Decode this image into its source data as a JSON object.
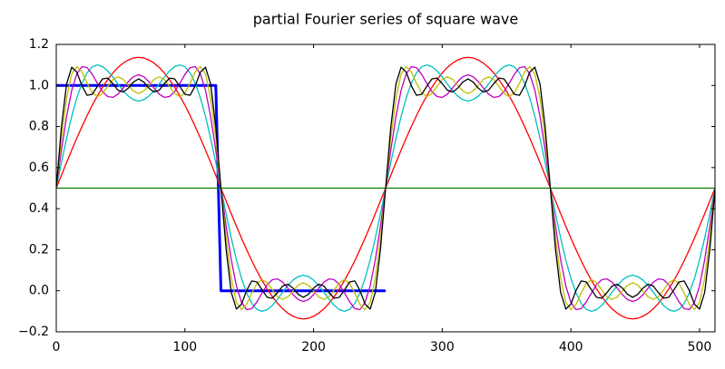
{
  "chart_data": {
    "type": "line",
    "title": "partial Fourier series of square wave",
    "xlim": [
      0,
      512
    ],
    "ylim": [
      -0.2,
      1.2
    ],
    "xticks": [
      0,
      100,
      200,
      300,
      400,
      500
    ],
    "yticks": [
      {
        "value": -0.2,
        "label": "−0.2"
      },
      {
        "value": 0,
        "label": "0.0"
      },
      {
        "value": 0.2,
        "label": "0.2"
      },
      {
        "value": 0.4,
        "label": "0.4"
      },
      {
        "value": 0.6,
        "label": "0.6"
      },
      {
        "value": 0.8,
        "label": "0.8"
      },
      {
        "value": 1,
        "label": "1.0"
      },
      {
        "value": 1.2,
        "label": "1.2"
      }
    ],
    "grid": false,
    "x": [
      0,
      4,
      8,
      12,
      16,
      20,
      24,
      28,
      32,
      36,
      40,
      44,
      48,
      52,
      56,
      60,
      64,
      68,
      72,
      76,
      80,
      84,
      88,
      92,
      96,
      100,
      104,
      108,
      112,
      116,
      120,
      124,
      128,
      132,
      136,
      140,
      144,
      148,
      152,
      156,
      160,
      164,
      168,
      172,
      176,
      180,
      184,
      188,
      192,
      196,
      200,
      204,
      208,
      212,
      216,
      220,
      224,
      228,
      232,
      236,
      240,
      244,
      248,
      252,
      256,
      260,
      264,
      268,
      272,
      276,
      280,
      284,
      288,
      292,
      296,
      300,
      304,
      308,
      312,
      316,
      320,
      324,
      328,
      332,
      336,
      340,
      344,
      348,
      352,
      356,
      360,
      364,
      368,
      372,
      376,
      380,
      384,
      388,
      392,
      396,
      400,
      404,
      408,
      412,
      416,
      420,
      424,
      428,
      432,
      436,
      440,
      444,
      448,
      452,
      456,
      460,
      464,
      468,
      472,
      476,
      480,
      484,
      488,
      492,
      496,
      500,
      504,
      508,
      512
    ],
    "series": [
      {
        "color": "#0000ff",
        "linewidth": 3,
        "values": [
          1,
          1,
          1,
          1,
          1,
          1,
          1,
          1,
          1,
          1,
          1,
          1,
          1,
          1,
          1,
          1,
          1,
          1,
          1,
          1,
          1,
          1,
          1,
          1,
          1,
          1,
          1,
          1,
          1,
          1,
          1,
          1,
          0,
          0,
          0,
          0,
          0,
          0,
          0,
          0,
          0,
          0,
          0,
          0,
          0,
          0,
          0,
          0,
          0,
          0,
          0,
          0,
          0,
          0,
          0,
          0,
          0,
          0,
          0,
          0,
          0,
          0,
          0,
          0,
          0,
          null,
          null,
          null,
          null,
          null,
          null,
          null,
          null,
          null,
          null,
          null,
          null,
          null,
          null,
          null,
          null,
          null,
          null,
          null,
          null,
          null,
          null,
          null,
          null,
          null,
          null,
          null,
          null,
          null,
          null,
          null,
          null,
          null,
          null,
          null,
          null,
          null,
          null,
          null,
          null,
          null,
          null,
          null,
          null,
          null,
          null,
          null,
          null,
          null,
          null,
          null,
          null,
          null,
          null,
          null,
          null,
          null,
          null,
          null,
          null,
          null,
          null,
          null,
          null
        ]
      },
      {
        "color": "#008000",
        "linewidth": 1.3,
        "values": [
          0.5,
          0.5,
          0.5,
          0.5,
          0.5,
          0.5,
          0.5,
          0.5,
          0.5,
          0.5,
          0.5,
          0.5,
          0.5,
          0.5,
          0.5,
          0.5,
          0.5,
          0.5,
          0.5,
          0.5,
          0.5,
          0.5,
          0.5,
          0.5,
          0.5,
          0.5,
          0.5,
          0.5,
          0.5,
          0.5,
          0.5,
          0.5,
          0.5,
          0.5,
          0.5,
          0.5,
          0.5,
          0.5,
          0.5,
          0.5,
          0.5,
          0.5,
          0.5,
          0.5,
          0.5,
          0.5,
          0.5,
          0.5,
          0.5,
          0.5,
          0.5,
          0.5,
          0.5,
          0.5,
          0.5,
          0.5,
          0.5,
          0.5,
          0.5,
          0.5,
          0.5,
          0.5,
          0.5,
          0.5,
          0.5,
          0.5,
          0.5,
          0.5,
          0.5,
          0.5,
          0.5,
          0.5,
          0.5,
          0.5,
          0.5,
          0.5,
          0.5,
          0.5,
          0.5,
          0.5,
          0.5,
          0.5,
          0.5,
          0.5,
          0.5,
          0.5,
          0.5,
          0.5,
          0.5,
          0.5,
          0.5,
          0.5,
          0.5,
          0.5,
          0.5,
          0.5,
          0.5,
          0.5,
          0.5,
          0.5,
          0.5,
          0.5,
          0.5,
          0.5,
          0.5,
          0.5,
          0.5,
          0.5,
          0.5,
          0.5,
          0.5,
          0.5,
          0.5,
          0.5,
          0.5,
          0.5,
          0.5,
          0.5,
          0.5,
          0.5,
          0.5,
          0.5,
          0.5,
          0.5,
          0.5,
          0.5,
          0.5,
          0.5,
          0.5
        ]
      },
      {
        "color": "#ff0000",
        "linewidth": 1.3,
        "values": [
          0.5,
          0.562,
          0.624,
          0.685,
          0.744,
          0.8,
          0.854,
          0.904,
          0.95,
          0.992,
          1.029,
          1.061,
          1.088,
          1.109,
          1.124,
          1.134,
          1.137,
          1.134,
          1.124,
          1.109,
          1.088,
          1.061,
          1.029,
          0.992,
          0.95,
          0.904,
          0.854,
          0.8,
          0.744,
          0.685,
          0.624,
          0.562,
          0.5,
          0.438,
          0.376,
          0.315,
          0.256,
          0.2,
          0.146,
          0.096,
          0.05,
          0.008,
          -0.029,
          -0.061,
          -0.088,
          -0.109,
          -0.124,
          -0.134,
          -0.137,
          -0.134,
          -0.124,
          -0.109,
          -0.088,
          -0.061,
          -0.029,
          0.008,
          0.05,
          0.096,
          0.146,
          0.2,
          0.256,
          0.315,
          0.376,
          0.438,
          0.5,
          0.562,
          0.624,
          0.685,
          0.744,
          0.8,
          0.854,
          0.904,
          0.95,
          0.992,
          1.029,
          1.061,
          1.088,
          1.109,
          1.124,
          1.134,
          1.137,
          1.134,
          1.124,
          1.109,
          1.088,
          1.061,
          1.029,
          0.992,
          0.95,
          0.904,
          0.854,
          0.8,
          0.744,
          0.685,
          0.624,
          0.562,
          0.5,
          0.438,
          0.376,
          0.315,
          0.256,
          0.2,
          0.146,
          0.096,
          0.05,
          0.008,
          -0.029,
          -0.061,
          -0.088,
          -0.109,
          -0.124,
          -0.134,
          -0.137,
          -0.134,
          -0.124,
          -0.109,
          -0.088,
          -0.061,
          -0.029,
          0.008,
          0.05,
          0.096,
          0.146,
          0.2,
          0.256,
          0.315,
          0.376,
          0.438,
          0.5
        ]
      },
      {
        "color": "#00bfbf",
        "linewidth": 1.3,
        "values": [
          0.5,
          0.624,
          0.742,
          0.849,
          0.94,
          1.011,
          1.062,
          1.091,
          1.1,
          1.092,
          1.071,
          1.041,
          1.007,
          0.975,
          0.948,
          0.931,
          0.924,
          0.931,
          0.948,
          0.975,
          1.007,
          1.041,
          1.071,
          1.092,
          1.1,
          1.091,
          1.062,
          1.011,
          0.94,
          0.849,
          0.742,
          0.624,
          0.5,
          0.376,
          0.258,
          0.151,
          0.06,
          -0.011,
          -0.062,
          -0.091,
          -0.1,
          -0.092,
          -0.071,
          -0.041,
          -0.007,
          0.025,
          0.052,
          0.069,
          0.076,
          0.069,
          0.052,
          0.025,
          -0.007,
          -0.041,
          -0.071,
          -0.092,
          -0.1,
          -0.091,
          -0.062,
          -0.011,
          0.06,
          0.151,
          0.258,
          0.376,
          0.5,
          0.624,
          0.742,
          0.849,
          0.94,
          1.011,
          1.062,
          1.091,
          1.1,
          1.092,
          1.071,
          1.041,
          1.007,
          0.975,
          0.948,
          0.931,
          0.924,
          0.931,
          0.948,
          0.975,
          1.007,
          1.041,
          1.071,
          1.092,
          1.1,
          1.091,
          1.062,
          1.011,
          0.94,
          0.849,
          0.742,
          0.624,
          0.5,
          0.376,
          0.258,
          0.151,
          0.06,
          -0.011,
          -0.062,
          -0.091,
          -0.1,
          -0.092,
          -0.071,
          -0.041,
          -0.007,
          0.025,
          0.052,
          0.069,
          0.076,
          0.069,
          0.052,
          0.025,
          -0.007,
          -0.041,
          -0.071,
          -0.092,
          -0.1,
          -0.091,
          -0.062,
          -0.011,
          0.06,
          0.151,
          0.258,
          0.376,
          0.5
        ]
      },
      {
        "color": "#bf00bf",
        "linewidth": 1.3,
        "values": [
          0.5,
          0.684,
          0.848,
          0.976,
          1.057,
          1.092,
          1.087,
          1.054,
          1.01,
          0.97,
          0.946,
          0.942,
          0.958,
          0.987,
          1.019,
          1.043,
          1.052,
          1.043,
          1.019,
          0.987,
          0.958,
          0.942,
          0.946,
          0.97,
          1.01,
          1.054,
          1.087,
          1.092,
          1.057,
          0.976,
          0.848,
          0.684,
          0.5,
          0.316,
          0.152,
          0.024,
          -0.057,
          -0.092,
          -0.087,
          -0.054,
          -0.01,
          0.03,
          0.054,
          0.058,
          0.042,
          0.013,
          -0.019,
          -0.043,
          -0.052,
          -0.043,
          -0.019,
          0.013,
          0.042,
          0.058,
          0.054,
          0.03,
          -0.01,
          -0.054,
          -0.087,
          -0.092,
          -0.057,
          0.024,
          0.152,
          0.316,
          0.5,
          0.684,
          0.848,
          0.976,
          1.057,
          1.092,
          1.087,
          1.054,
          1.01,
          0.97,
          0.946,
          0.942,
          0.958,
          0.987,
          1.019,
          1.043,
          1.052,
          1.043,
          1.019,
          0.987,
          0.958,
          0.942,
          0.946,
          0.97,
          1.01,
          1.054,
          1.087,
          1.092,
          1.057,
          0.976,
          0.848,
          0.684,
          0.5,
          0.316,
          0.152,
          0.024,
          -0.057,
          -0.092,
          -0.087,
          -0.054,
          -0.01,
          0.03,
          0.054,
          0.058,
          0.042,
          0.013,
          -0.019,
          -0.043,
          -0.052,
          -0.043,
          -0.019,
          0.013,
          0.042,
          0.058,
          0.054,
          0.03,
          -0.01,
          -0.054,
          -0.087,
          -0.092,
          -0.057,
          0.024,
          0.152,
          0.316,
          0.5
        ]
      },
      {
        "color": "#bfbf00",
        "linewidth": 1.3,
        "values": [
          0.5,
          0.742,
          0.937,
          1.056,
          1.092,
          1.066,
          1.011,
          0.964,
          0.946,
          0.961,
          0.996,
          1.029,
          1.042,
          1.03,
          1.001,
          0.973,
          0.961,
          0.973,
          1.001,
          1.03,
          1.042,
          1.029,
          0.996,
          0.961,
          0.946,
          0.964,
          1.011,
          1.066,
          1.092,
          1.056,
          0.937,
          0.742,
          0.5,
          0.258,
          0.063,
          -0.056,
          -0.092,
          -0.066,
          -0.011,
          0.036,
          0.054,
          0.039,
          0.004,
          -0.029,
          -0.042,
          -0.03,
          -0.001,
          0.027,
          0.039,
          0.027,
          -0.001,
          -0.03,
          -0.042,
          -0.029,
          0.004,
          0.039,
          0.054,
          0.036,
          -0.011,
          -0.066,
          -0.092,
          -0.056,
          0.063,
          0.258,
          0.5,
          0.742,
          0.937,
          1.056,
          1.092,
          1.066,
          1.011,
          0.964,
          0.946,
          0.961,
          0.996,
          1.029,
          1.042,
          1.03,
          1.001,
          0.973,
          0.961,
          0.973,
          1.001,
          1.03,
          1.042,
          1.029,
          0.996,
          0.961,
          0.946,
          0.964,
          1.011,
          1.066,
          1.092,
          1.056,
          0.937,
          0.742,
          0.5,
          0.258,
          0.063,
          -0.056,
          -0.092,
          -0.066,
          -0.011,
          0.036,
          0.054,
          0.039,
          0.004,
          -0.029,
          -0.042,
          -0.03,
          -0.001,
          0.027,
          0.039,
          0.027,
          -0.001,
          -0.03,
          -0.042,
          -0.029,
          0.004,
          0.039,
          0.054,
          0.036,
          -0.011,
          -0.066,
          -0.092,
          -0.056,
          0.063,
          0.258,
          0.5
        ]
      },
      {
        "color": "#000000",
        "linewidth": 1.3,
        "values": [
          0.5,
          0.796,
          1.007,
          1.089,
          1.065,
          0.998,
          0.952,
          0.957,
          0.996,
          1.032,
          1.036,
          1.009,
          0.977,
          0.968,
          0.987,
          1.017,
          1.032,
          1.017,
          0.987,
          0.968,
          0.977,
          1.009,
          1.036,
          1.032,
          0.996,
          0.957,
          0.952,
          0.998,
          1.065,
          1.089,
          1.007,
          0.796,
          0.5,
          0.204,
          -0.007,
          -0.089,
          -0.065,
          0.002,
          0.048,
          0.043,
          0.004,
          -0.032,
          -0.036,
          -0.009,
          0.023,
          0.032,
          0.013,
          -0.017,
          -0.032,
          -0.017,
          0.013,
          0.032,
          0.023,
          -0.009,
          -0.036,
          -0.032,
          0.004,
          0.043,
          0.048,
          0.002,
          -0.065,
          -0.089,
          -0.007,
          0.204,
          0.5,
          0.796,
          1.007,
          1.089,
          1.065,
          0.998,
          0.952,
          0.957,
          0.996,
          1.032,
          1.036,
          1.009,
          0.977,
          0.968,
          0.987,
          1.017,
          1.032,
          1.017,
          0.987,
          0.968,
          0.977,
          1.009,
          1.036,
          1.032,
          0.996,
          0.957,
          0.952,
          0.998,
          1.065,
          1.089,
          1.007,
          0.796,
          0.5,
          0.204,
          -0.007,
          -0.089,
          -0.065,
          0.002,
          0.048,
          0.043,
          0.004,
          -0.032,
          -0.036,
          -0.009,
          0.023,
          0.032,
          0.013,
          -0.017,
          -0.032,
          -0.017,
          0.013,
          0.032,
          0.023,
          -0.009,
          -0.036,
          -0.032,
          0.004,
          0.043,
          0.048,
          0.002,
          -0.065,
          -0.089,
          -0.007,
          0.204,
          0.5
        ]
      }
    ]
  }
}
